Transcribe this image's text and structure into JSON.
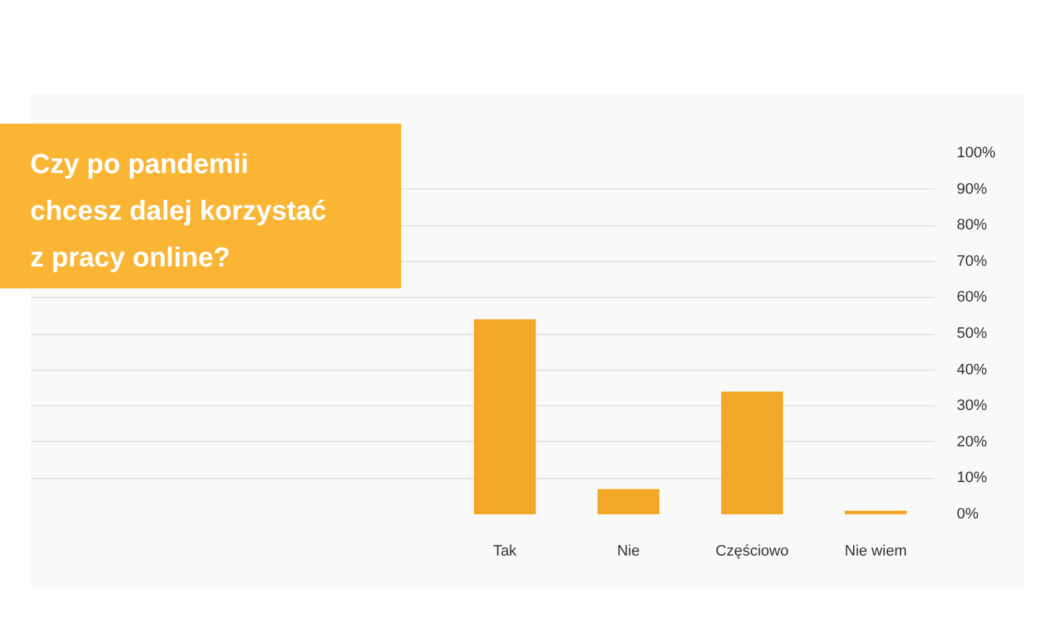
{
  "chart_data": {
    "type": "bar",
    "title": "Czy po pandemii\nchcesz dalej korzystać\nz pracy online?",
    "categories": [
      "Tak",
      "Nie",
      "Częściowo",
      "Nie wiem"
    ],
    "values": [
      54,
      7,
      34,
      1
    ],
    "color": "#f2a826",
    "ylim": [
      0,
      100
    ],
    "yticks": [
      {
        "value": 0,
        "label": "0%"
      },
      {
        "value": 10,
        "label": "10%"
      },
      {
        "value": 20,
        "label": "20%"
      },
      {
        "value": 30,
        "label": "30%"
      },
      {
        "value": 40,
        "label": "40%"
      },
      {
        "value": 50,
        "label": "50%"
      },
      {
        "value": 60,
        "label": "60%"
      },
      {
        "value": 70,
        "label": "70%"
      },
      {
        "value": 80,
        "label": "80%"
      },
      {
        "value": 90,
        "label": "90%"
      },
      {
        "value": 100,
        "label": "100%"
      }
    ],
    "grid": "y"
  }
}
